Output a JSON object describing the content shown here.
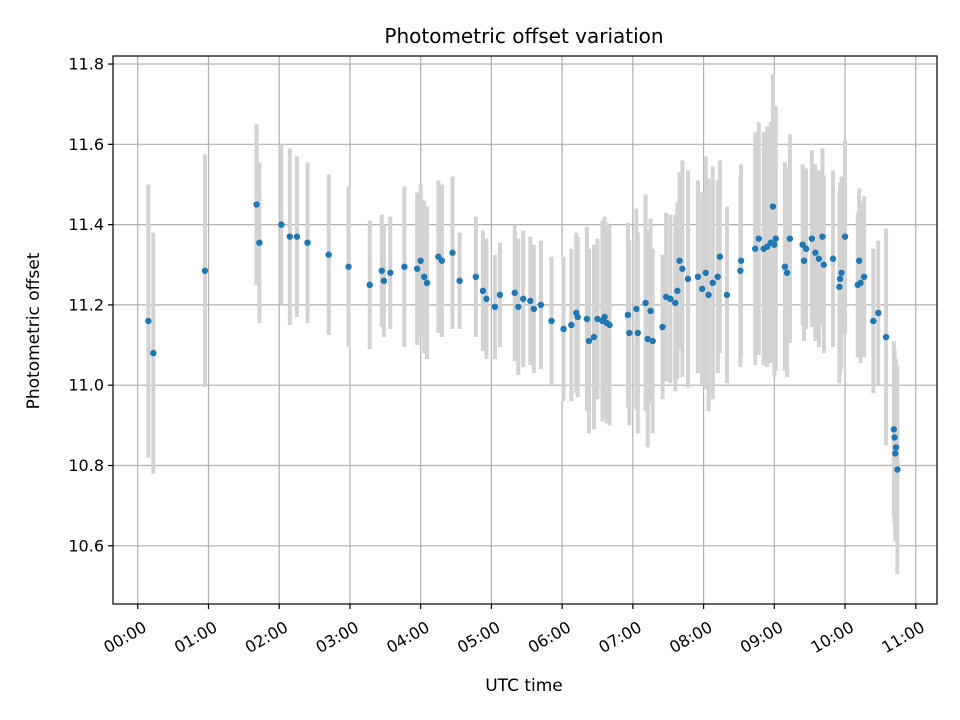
{
  "chart_data": {
    "type": "scatter",
    "title": "Photometric offset variation",
    "xlabel": "UTC time",
    "ylabel": "Photometric offset",
    "x_unit": "UTC hour of day",
    "xlim": [
      -0.35,
      11.3
    ],
    "ylim": [
      10.455,
      11.82
    ],
    "grid": true,
    "x_tick_values": [
      0,
      1,
      2,
      3,
      4,
      5,
      6,
      7,
      8,
      9,
      10,
      11
    ],
    "x_tick_labels": [
      "00:00",
      "01:00",
      "02:00",
      "03:00",
      "04:00",
      "05:00",
      "06:00",
      "07:00",
      "08:00",
      "09:00",
      "10:00",
      "11:00"
    ],
    "y_ticks": [
      10.6,
      10.8,
      11.0,
      11.2,
      11.4,
      11.6,
      11.8
    ],
    "y_tick_labels": [
      "10.6",
      "10.8",
      "11.0",
      "11.2",
      "11.4",
      "11.6",
      "11.8"
    ],
    "colors": {
      "points": "#1f77b4",
      "errorbars": "#d3d3d3",
      "grid": "#b0b0b0"
    },
    "series": [
      {
        "name": "",
        "x": [
          0.15,
          0.22,
          0.95,
          1.68,
          1.72,
          2.03,
          2.15,
          2.25,
          2.4,
          2.7,
          2.98,
          3.28,
          3.45,
          3.48,
          3.57,
          3.77,
          3.95,
          4.0,
          4.05,
          4.09,
          4.25,
          4.3,
          4.45,
          4.55,
          4.78,
          4.88,
          4.93,
          5.05,
          5.12,
          5.33,
          5.38,
          5.45,
          5.55,
          5.6,
          5.7,
          5.85,
          6.02,
          6.13,
          6.2,
          6.22,
          6.35,
          6.38,
          6.45,
          6.5,
          6.57,
          6.6,
          6.63,
          6.67,
          6.93,
          6.95,
          7.05,
          7.07,
          7.18,
          7.21,
          7.25,
          7.28,
          7.42,
          7.47,
          7.53,
          7.6,
          7.63,
          7.66,
          7.7,
          7.78,
          7.92,
          7.98,
          8.03,
          8.07,
          8.13,
          8.2,
          8.23,
          8.33,
          8.52,
          8.53,
          8.73,
          8.78,
          8.85,
          8.9,
          8.95,
          8.98,
          9.0,
          9.02,
          9.15,
          9.18,
          9.22,
          9.4,
          9.42,
          9.45,
          9.53,
          9.58,
          9.63,
          9.68,
          9.7,
          9.83,
          9.92,
          9.93,
          9.95,
          10.0,
          10.18,
          10.2,
          10.22,
          10.27,
          10.4,
          10.47,
          10.58,
          10.69,
          10.7,
          10.71,
          10.72,
          10.74
        ],
        "y": [
          11.16,
          11.08,
          11.285,
          11.45,
          11.355,
          11.4,
          11.37,
          11.37,
          11.355,
          11.325,
          11.295,
          11.25,
          11.285,
          11.26,
          11.28,
          11.295,
          11.29,
          11.31,
          11.27,
          11.255,
          11.32,
          11.31,
          11.33,
          11.26,
          11.27,
          11.235,
          11.215,
          11.195,
          11.225,
          11.23,
          11.195,
          11.215,
          11.21,
          11.19,
          11.2,
          11.16,
          11.14,
          11.15,
          11.18,
          11.17,
          11.165,
          11.11,
          11.12,
          11.165,
          11.16,
          11.17,
          11.155,
          11.15,
          11.175,
          11.13,
          11.19,
          11.13,
          11.205,
          11.115,
          11.185,
          11.11,
          11.145,
          11.22,
          11.215,
          11.205,
          11.235,
          11.31,
          11.29,
          11.265,
          11.27,
          11.24,
          11.28,
          11.225,
          11.255,
          11.27,
          11.32,
          11.225,
          11.285,
          11.31,
          11.34,
          11.365,
          11.34,
          11.345,
          11.355,
          11.445,
          11.35,
          11.365,
          11.295,
          11.28,
          11.365,
          11.35,
          11.31,
          11.34,
          11.365,
          11.33,
          11.315,
          11.37,
          11.3,
          11.315,
          11.245,
          11.265,
          11.28,
          11.37,
          11.25,
          11.31,
          11.255,
          11.27,
          11.16,
          11.18,
          11.12,
          10.89,
          10.87,
          10.83,
          10.845,
          10.79
        ],
        "yerr": [
          0.34,
          0.3,
          0.29,
          0.2,
          0.2,
          0.2,
          0.22,
          0.2,
          0.2,
          0.2,
          0.2,
          0.16,
          0.14,
          0.14,
          0.14,
          0.2,
          0.19,
          0.19,
          0.19,
          0.19,
          0.19,
          0.19,
          0.19,
          0.12,
          0.15,
          0.15,
          0.15,
          0.13,
          0.13,
          0.17,
          0.17,
          0.17,
          0.16,
          0.16,
          0.16,
          0.16,
          0.18,
          0.19,
          0.2,
          0.2,
          0.23,
          0.23,
          0.23,
          0.2,
          0.25,
          0.25,
          0.25,
          0.25,
          0.23,
          0.23,
          0.25,
          0.25,
          0.27,
          0.27,
          0.23,
          0.23,
          0.18,
          0.21,
          0.21,
          0.22,
          0.22,
          0.22,
          0.27,
          0.27,
          0.24,
          0.24,
          0.29,
          0.29,
          0.29,
          0.24,
          0.24,
          0.22,
          0.24,
          0.24,
          0.29,
          0.29,
          0.29,
          0.3,
          0.3,
          0.33,
          0.33,
          0.33,
          0.26,
          0.26,
          0.26,
          0.2,
          0.2,
          0.2,
          0.22,
          0.22,
          0.22,
          0.22,
          0.22,
          0.22,
          0.24,
          0.24,
          0.24,
          0.24,
          0.18,
          0.18,
          0.2,
          0.2,
          0.18,
          0.18,
          0.27,
          0.22,
          0.22,
          0.22,
          0.22,
          0.26
        ]
      }
    ]
  }
}
